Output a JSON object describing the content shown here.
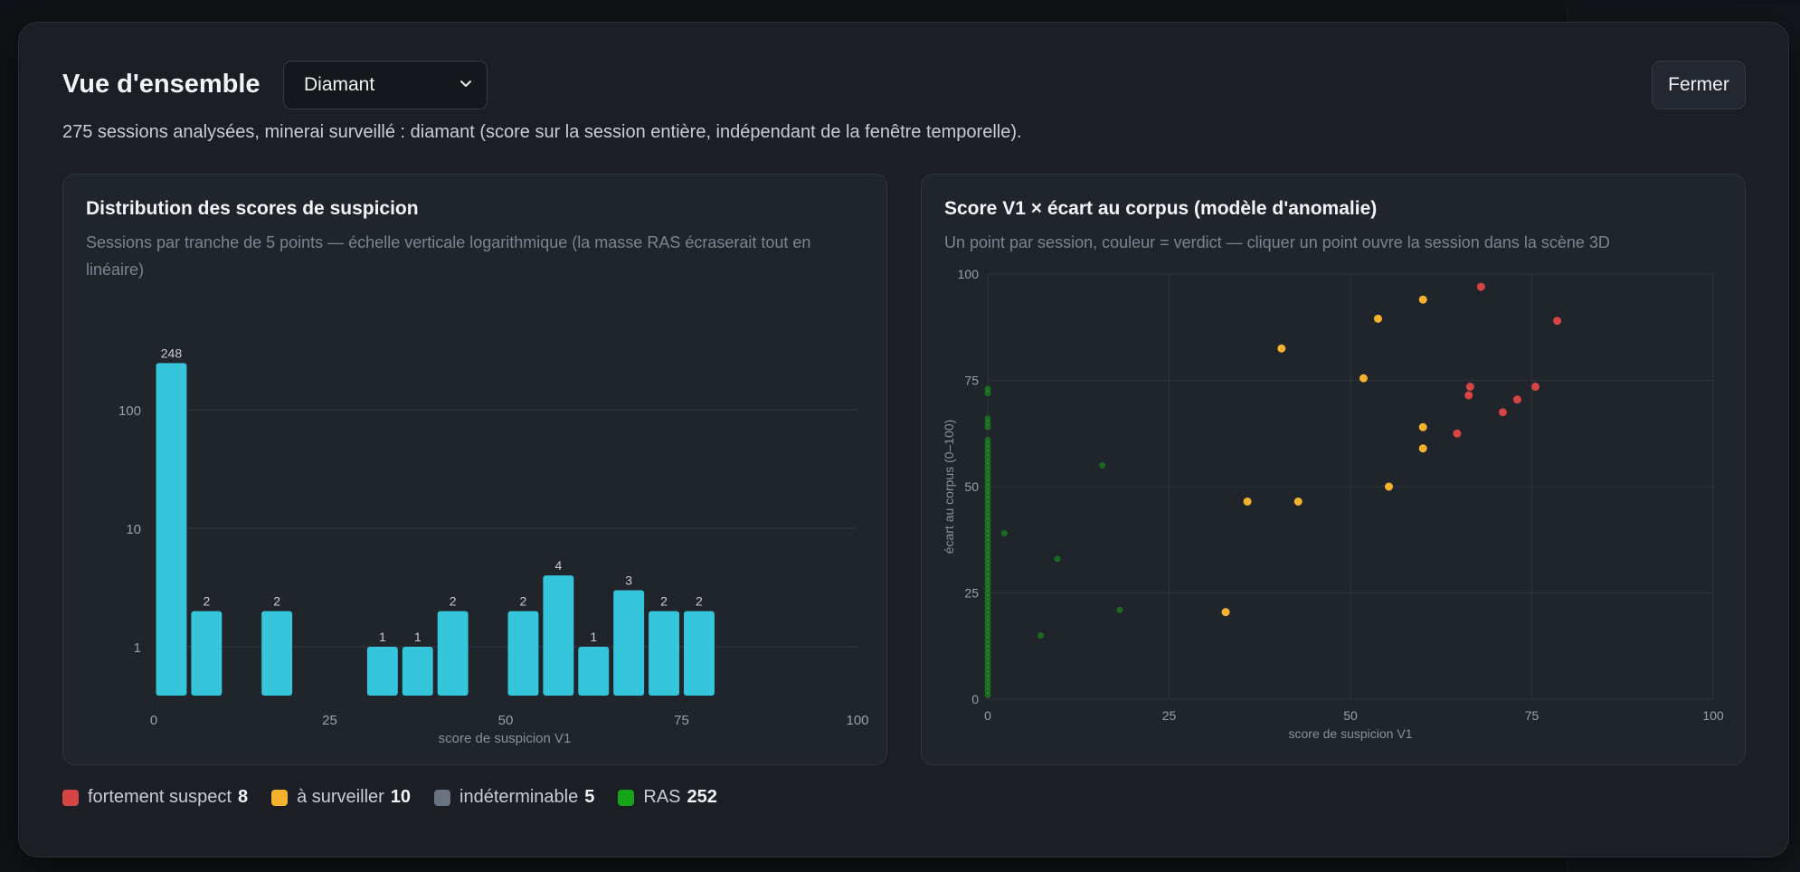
{
  "modal": {
    "title": "Vue d'ensemble",
    "ore_select": {
      "value": "Diamant"
    },
    "close_label": "Fermer",
    "summary": "275 sessions analysées, minerai surveillé : diamant (score sur la session entière, indépendant de la fenêtre temporelle)."
  },
  "colors": {
    "bar": "#36c6dc",
    "fortement_suspect": "#d64545",
    "a_surveiller": "#f4b22e",
    "indeterminable": "#6b7280",
    "ras": "#16a31a"
  },
  "histogram_card": {
    "title": "Distribution des scores de suspicion",
    "description": "Sessions par tranche de 5 points — échelle verticale logarithmique (la masse RAS écraserait tout en linéaire)"
  },
  "scatter_card": {
    "title": "Score V1 × écart au corpus (modèle d'anomalie)",
    "description": "Un point par session, couleur = verdict — cliquer un point ouvre la session dans la scène 3D"
  },
  "legend": [
    {
      "label": "fortement suspect",
      "count": "8",
      "color": "#d64545"
    },
    {
      "label": "à surveiller",
      "count": "10",
      "color": "#f4b22e"
    },
    {
      "label": "indéterminable",
      "count": "5",
      "color": "#6b7280"
    },
    {
      "label": "RAS",
      "count": "252",
      "color": "#16a31a"
    }
  ],
  "chart_data": [
    {
      "type": "bar",
      "xlabel": "score de suspicion V1",
      "ylabel": "",
      "y_scale": "log",
      "x_ticks": [
        "0",
        "25",
        "50",
        "75",
        "100"
      ],
      "y_ticks": [
        "1",
        "10",
        "100"
      ],
      "xlim": [
        0,
        100
      ],
      "bin_width": 5,
      "bins": [
        {
          "start": 0,
          "value": 248
        },
        {
          "start": 5,
          "value": 2
        },
        {
          "start": 15,
          "value": 2
        },
        {
          "start": 30,
          "value": 1
        },
        {
          "start": 35,
          "value": 1
        },
        {
          "start": 40,
          "value": 2
        },
        {
          "start": 50,
          "value": 2
        },
        {
          "start": 55,
          "value": 4
        },
        {
          "start": 60,
          "value": 1
        },
        {
          "start": 65,
          "value": 3
        },
        {
          "start": 70,
          "value": 2
        },
        {
          "start": 75,
          "value": 2
        }
      ]
    },
    {
      "type": "scatter",
      "xlabel": "score de suspicion V1",
      "ylabel": "écart au corpus (0–100)",
      "xlim": [
        0,
        100
      ],
      "ylim": [
        0,
        100
      ],
      "x_ticks": [
        "0",
        "25",
        "50",
        "75",
        "100"
      ],
      "y_ticks": [
        "0",
        "25",
        "50",
        "75",
        "100"
      ],
      "grid": true,
      "series": [
        {
          "verdict": "fortement suspect",
          "color": "#d64545",
          "points": [
            [
              68,
              97
            ],
            [
              78.5,
              89
            ],
            [
              66.5,
              73.5
            ],
            [
              75.5,
              73.5
            ],
            [
              66.3,
              71.5
            ],
            [
              73,
              70.5
            ],
            [
              71,
              67.5
            ],
            [
              64.7,
              62.5
            ]
          ]
        },
        {
          "verdict": "à surveiller",
          "color": "#f4b22e",
          "points": [
            [
              60,
              94
            ],
            [
              53.8,
              89.5
            ],
            [
              40.5,
              82.5
            ],
            [
              51.8,
              75.5
            ],
            [
              60,
              64
            ],
            [
              60,
              59
            ],
            [
              55.3,
              50
            ],
            [
              35.8,
              46.5
            ],
            [
              42.8,
              46.5
            ],
            [
              32.8,
              20.5
            ]
          ]
        },
        {
          "verdict": "RAS",
          "color": "#16a31a",
          "points": [
            [
              15.8,
              55
            ],
            [
              2.3,
              39
            ],
            [
              9.6,
              33
            ],
            [
              18.2,
              21
            ],
            [
              7.3,
              15
            ],
            [
              0,
              73
            ],
            [
              0,
              72
            ],
            [
              0,
              66
            ],
            [
              0,
              65
            ],
            [
              0,
              64
            ],
            [
              0,
              61
            ],
            [
              0,
              60
            ],
            [
              0,
              59
            ],
            [
              0,
              58
            ],
            [
              0,
              57
            ],
            [
              0,
              56
            ],
            [
              0,
              55
            ],
            [
              0,
              54
            ],
            [
              0,
              53
            ],
            [
              0,
              52
            ],
            [
              0,
              51
            ],
            [
              0,
              50
            ],
            [
              0,
              49
            ],
            [
              0,
              48
            ],
            [
              0,
              47
            ],
            [
              0,
              46
            ],
            [
              0,
              45
            ],
            [
              0,
              44
            ],
            [
              0,
              43
            ],
            [
              0,
              42
            ],
            [
              0,
              41
            ],
            [
              0,
              40
            ],
            [
              0,
              39
            ],
            [
              0,
              38
            ],
            [
              0,
              37
            ],
            [
              0,
              36
            ],
            [
              0,
              35
            ],
            [
              0,
              34
            ],
            [
              0,
              33
            ],
            [
              0,
              32
            ],
            [
              0,
              31
            ],
            [
              0,
              30
            ],
            [
              0,
              29
            ],
            [
              0,
              28
            ],
            [
              0,
              27
            ],
            [
              0,
              26
            ],
            [
              0,
              25
            ],
            [
              0,
              24
            ],
            [
              0,
              23
            ],
            [
              0,
              22
            ],
            [
              0,
              21
            ],
            [
              0,
              20
            ],
            [
              0,
              19
            ],
            [
              0,
              18
            ],
            [
              0,
              17
            ],
            [
              0,
              16
            ],
            [
              0,
              15
            ],
            [
              0,
              14
            ],
            [
              0,
              13
            ],
            [
              0,
              12
            ],
            [
              0,
              11
            ],
            [
              0,
              10
            ],
            [
              0,
              9
            ],
            [
              0,
              8
            ],
            [
              0,
              7
            ],
            [
              0,
              6
            ],
            [
              0,
              5
            ],
            [
              0,
              4
            ],
            [
              0,
              3
            ],
            [
              0,
              2
            ],
            [
              0,
              1
            ]
          ]
        }
      ]
    }
  ]
}
